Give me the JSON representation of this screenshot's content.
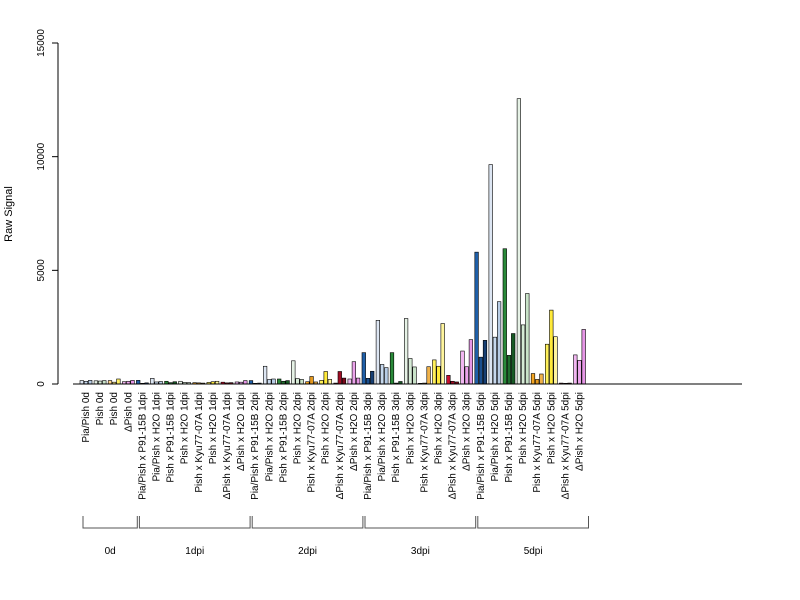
{
  "chart_data": {
    "type": "bar",
    "ylabel": "Raw Signal",
    "ylim": [
      0,
      15000
    ],
    "yticks": [
      0,
      5000,
      10000,
      15000
    ],
    "ytick_labels": [
      "0",
      "5000",
      "10000",
      "15000"
    ],
    "bar_border": "#000000",
    "categories": [
      {
        "label": "Pia/Pish 0d",
        "colors": [
          "#DDE6F3",
          "#C7D9EE",
          "#B8CDE6"
        ],
        "values": [
          150,
          120,
          160
        ]
      },
      {
        "label": "Pish 0d",
        "colors": [
          "#E6F2E6",
          "#D6EBD6",
          "#C9E3C9"
        ],
        "values": [
          140,
          130,
          150
        ]
      },
      {
        "label": "Pish 0d",
        "colors": [
          "#FFD58A",
          "#FFEB80",
          "#FFF066"
        ],
        "values": [
          150,
          80,
          220
        ]
      },
      {
        "label": "ΔPish 0d",
        "colors": [
          "#F1B6F1",
          "#EBA4EB",
          "#E696E6"
        ],
        "values": [
          100,
          120,
          160
        ]
      },
      {
        "label": "Pia/Pish x P91-15B 1dpi",
        "colors": [
          "#1F5FA8",
          "#1A4F8F",
          "#173F73"
        ],
        "values": [
          160,
          30,
          50
        ]
      },
      {
        "label": "Pia/Pish x H2O 1dpi",
        "colors": [
          "#DDE6F3",
          "#C7D9EE",
          "#B8CDE6"
        ],
        "values": [
          250,
          90,
          110
        ]
      },
      {
        "label": "Pish x P91-15B 1dpi",
        "colors": [
          "#2A8A3A",
          "#1F6E2E",
          "#175A25"
        ],
        "values": [
          120,
          60,
          100
        ]
      },
      {
        "label": "Pish x H2O 1dpi",
        "colors": [
          "#E6F2E6",
          "#D6EBD6",
          "#C9E3C9"
        ],
        "values": [
          120,
          70,
          60
        ]
      },
      {
        "label": "Pish x Kyu77-07A 1dpi",
        "colors": [
          "#F5A623",
          "#E69A1F",
          "#F0B24A"
        ],
        "values": [
          60,
          50,
          40
        ]
      },
      {
        "label": "Pish x H2O 1dpi",
        "colors": [
          "#FFF15A",
          "#FFEA3A",
          "#FFF59D"
        ],
        "values": [
          70,
          100,
          120
        ]
      },
      {
        "label": "ΔPish x Kyu77-07A 1dpi",
        "colors": [
          "#C8102E",
          "#A00D25",
          "#7A0A1C"
        ],
        "values": [
          80,
          50,
          60
        ]
      },
      {
        "label": "ΔPish x H2O 1dpi",
        "colors": [
          "#F1B6F1",
          "#EBA4EB",
          "#E696E6"
        ],
        "values": [
          90,
          80,
          150
        ]
      },
      {
        "label": "Pia/Pish x P91-15B 2dpi",
        "colors": [
          "#1F5FA8",
          "#1A4F8F",
          "#173F73"
        ],
        "values": [
          150,
          30,
          40
        ]
      },
      {
        "label": "Pia/Pish x H2O 2dpi",
        "colors": [
          "#DDE6F3",
          "#C7D9EE",
          "#B8CDE6"
        ],
        "values": [
          780,
          200,
          220
        ]
      },
      {
        "label": "Pish x P91-15B 2dpi",
        "colors": [
          "#2A8A3A",
          "#1F6E2E",
          "#175A25"
        ],
        "values": [
          220,
          120,
          150
        ]
      },
      {
        "label": "Pish x H2O 2dpi",
        "colors": [
          "#E6F2E6",
          "#D6EBD6",
          "#C9E3C9"
        ],
        "values": [
          1020,
          240,
          200
        ]
      },
      {
        "label": "Pish x Kyu77-07A 2dpi",
        "colors": [
          "#F5A623",
          "#E69A1F",
          "#F0B24A"
        ],
        "values": [
          100,
          330,
          90
        ]
      },
      {
        "label": "Pish x H2O 2dpi",
        "colors": [
          "#FFF15A",
          "#FFEA3A",
          "#FFF59D"
        ],
        "values": [
          160,
          550,
          200
        ]
      },
      {
        "label": "ΔPish x Kyu77-07A 2dpi",
        "colors": [
          "#C8102E",
          "#A00D25",
          "#7A0A1C"
        ],
        "values": [
          40,
          550,
          260
        ]
      },
      {
        "label": "ΔPish x H2O 2dpi",
        "colors": [
          "#F1B6F1",
          "#EBA4EB",
          "#E696E6"
        ],
        "values": [
          220,
          980,
          260
        ]
      },
      {
        "label": "Pia/Pish x P91-15B 3dpi",
        "colors": [
          "#1F5FA8",
          "#1A4F8F",
          "#173F73"
        ],
        "values": [
          1380,
          250,
          560
        ]
      },
      {
        "label": "Pia/Pish x H2O 3dpi",
        "colors": [
          "#DDE6F3",
          "#C7D9EE",
          "#B8CDE6"
        ],
        "values": [
          2800,
          860,
          720
        ]
      },
      {
        "label": "Pish x P91-15B 3dpi",
        "colors": [
          "#2A8A3A",
          "#1F6E2E",
          "#175A25"
        ],
        "values": [
          1380,
          40,
          110
        ]
      },
      {
        "label": "Pish x H2O 3dpi",
        "colors": [
          "#E6F2E6",
          "#D6EBD6",
          "#C9E3C9"
        ],
        "values": [
          2880,
          1120,
          750
        ]
      },
      {
        "label": "Pish x Kyu77-07A 3dpi",
        "colors": [
          "#F5A623",
          "#E69A1F",
          "#F0B24A"
        ],
        "values": [
          30,
          40,
          760
        ]
      },
      {
        "label": "Pish x H2O 3dpi",
        "colors": [
          "#FFF15A",
          "#FFEA3A",
          "#FFF59D"
        ],
        "values": [
          1060,
          780,
          2660
        ]
      },
      {
        "label": "ΔPish x Kyu77-07A 3dpi",
        "colors": [
          "#C8102E",
          "#A00D25",
          "#7A0A1C"
        ],
        "values": [
          380,
          120,
          90
        ]
      },
      {
        "label": "ΔPish x H2O 3dpi",
        "colors": [
          "#F1B6F1",
          "#EBA4EB",
          "#E696E6"
        ],
        "values": [
          1450,
          760,
          1950
        ]
      },
      {
        "label": "Pia/Pish x P91-15B 5dpi",
        "colors": [
          "#1F5FA8",
          "#1A4F8F",
          "#173F73"
        ],
        "values": [
          5800,
          1180,
          1920
        ]
      },
      {
        "label": "Pia/Pish x H2O 5dpi",
        "colors": [
          "#DDE6F3",
          "#C7D9EE",
          "#B8CDE6"
        ],
        "values": [
          9650,
          2060,
          3620
        ]
      },
      {
        "label": "Pish x P91-15B 5dpi",
        "colors": [
          "#2A8A3A",
          "#1F6E2E",
          "#175A25"
        ],
        "values": [
          5950,
          1260,
          2220
        ]
      },
      {
        "label": "Pish x H2O 5dpi",
        "colors": [
          "#E6F2E6",
          "#D6EBD6",
          "#C9E3C9"
        ],
        "values": [
          12550,
          2600,
          3980
        ]
      },
      {
        "label": "Pish x Kyu77-07A 5dpi",
        "colors": [
          "#F5A623",
          "#E69A1F",
          "#F0B24A"
        ],
        "values": [
          460,
          200,
          440
        ]
      },
      {
        "label": "Pish x H2O 5dpi",
        "colors": [
          "#FFF15A",
          "#FFEA3A",
          "#FFF59D"
        ],
        "values": [
          1750,
          3250,
          2080
        ]
      },
      {
        "label": "ΔPish x Kyu77-07A 5dpi",
        "colors": [
          "#C8102E",
          "#A00D25",
          "#7A0A1C"
        ],
        "values": [
          40,
          30,
          40
        ]
      },
      {
        "label": "ΔPish x H2O 5dpi",
        "colors": [
          "#F1B6F1",
          "#EBA4EB",
          "#E696E6"
        ],
        "values": [
          1280,
          1040,
          2400
        ]
      }
    ],
    "groups": [
      {
        "label": "0d",
        "start": 0,
        "end": 3
      },
      {
        "label": "1dpi",
        "start": 4,
        "end": 11
      },
      {
        "label": "2dpi",
        "start": 12,
        "end": 19
      },
      {
        "label": "3dpi",
        "start": 20,
        "end": 27
      },
      {
        "label": "5dpi",
        "start": 28,
        "end": 35
      }
    ]
  }
}
